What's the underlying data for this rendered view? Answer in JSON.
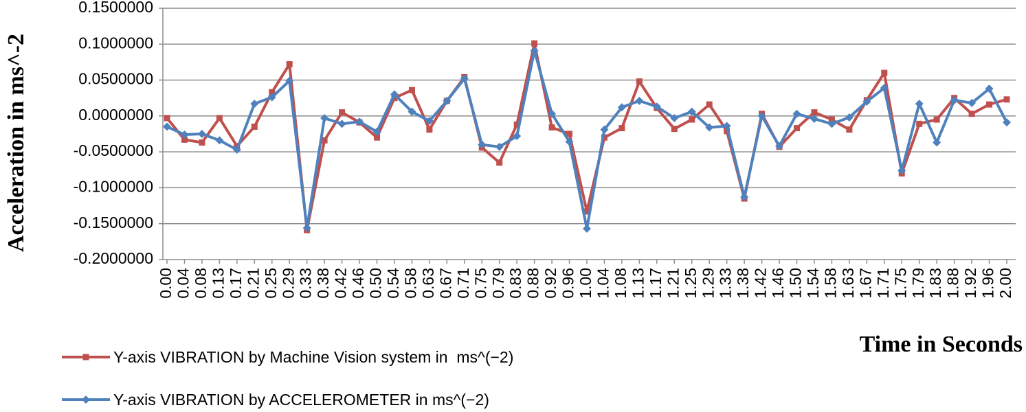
{
  "chart_data": {
    "type": "line",
    "x_label": "Time in Seconds",
    "y_label": "Acceleration in ms^-2",
    "categories": [
      "0.00",
      "0.04",
      "0.08",
      "0.13",
      "0.17",
      "0.21",
      "0.25",
      "0.29",
      "0.33",
      "0.38",
      "0.42",
      "0.46",
      "0.50",
      "0.54",
      "0.58",
      "0.63",
      "0.67",
      "0.71",
      "0.75",
      "0.79",
      "0.83",
      "0.88",
      "0.92",
      "0.96",
      "1.00",
      "1.04",
      "1.08",
      "1.13",
      "1.17",
      "1.21",
      "1.25",
      "1.29",
      "1.33",
      "1.38",
      "1.42",
      "1.46",
      "1.50",
      "1.54",
      "1.58",
      "1.63",
      "1.67",
      "1.71",
      "1.75",
      "1.79",
      "1.83",
      "1.88",
      "1.92",
      "1.96",
      "2.00"
    ],
    "series": [
      {
        "name": "Y-axis VIBRATION by Machine Vision system in  ms^(−2)",
        "color": "#c0504d",
        "marker": "square",
        "values": [
          -0.003,
          -0.033,
          -0.037,
          -0.003,
          -0.042,
          -0.015,
          0.033,
          0.072,
          -0.159,
          -0.034,
          0.005,
          -0.009,
          -0.03,
          0.025,
          0.036,
          -0.019,
          0.021,
          0.054,
          -0.044,
          -0.065,
          -0.012,
          0.101,
          -0.016,
          -0.025,
          -0.133,
          -0.03,
          -0.017,
          0.048,
          0.011,
          -0.018,
          -0.005,
          0.016,
          -0.021,
          -0.115,
          0.003,
          -0.043,
          -0.017,
          0.005,
          -0.005,
          -0.019,
          0.022,
          0.06,
          -0.08,
          -0.011,
          -0.005,
          0.025,
          0.003,
          0.016,
          0.023
        ]
      },
      {
        "name": "Y-axis VIBRATION by ACCELEROMETER in ms^(−2)",
        "color": "#4f81bd",
        "marker": "diamond",
        "values": [
          -0.015,
          -0.026,
          -0.025,
          -0.034,
          -0.047,
          0.017,
          0.026,
          0.049,
          -0.156,
          -0.003,
          -0.011,
          -0.008,
          -0.022,
          0.03,
          0.006,
          -0.007,
          0.021,
          0.052,
          -0.04,
          -0.043,
          -0.028,
          0.091,
          0.003,
          -0.036,
          -0.157,
          -0.019,
          0.012,
          0.021,
          0.013,
          -0.003,
          0.006,
          -0.016,
          -0.014,
          -0.113,
          0.0,
          -0.042,
          0.003,
          -0.004,
          -0.011,
          -0.002,
          0.02,
          0.039,
          -0.076,
          0.017,
          -0.037,
          0.022,
          0.018,
          0.038,
          -0.009
        ]
      }
    ],
    "ylim": [
      -0.2,
      0.15
    ],
    "yticks": [
      {
        "value": -0.2,
        "label": "-0.2000000"
      },
      {
        "value": -0.15,
        "label": "-0.1500000"
      },
      {
        "value": -0.1,
        "label": "-0.1000000"
      },
      {
        "value": -0.05,
        "label": "-0.0500000"
      },
      {
        "value": 0,
        "label": "0.0000000"
      },
      {
        "value": 0.05,
        "label": "0.0500000"
      },
      {
        "value": 0.1,
        "label": "0.1000000"
      },
      {
        "value": 0.15,
        "label": "0.1500000"
      }
    ],
    "grid": true,
    "legend": "bottom-left"
  }
}
